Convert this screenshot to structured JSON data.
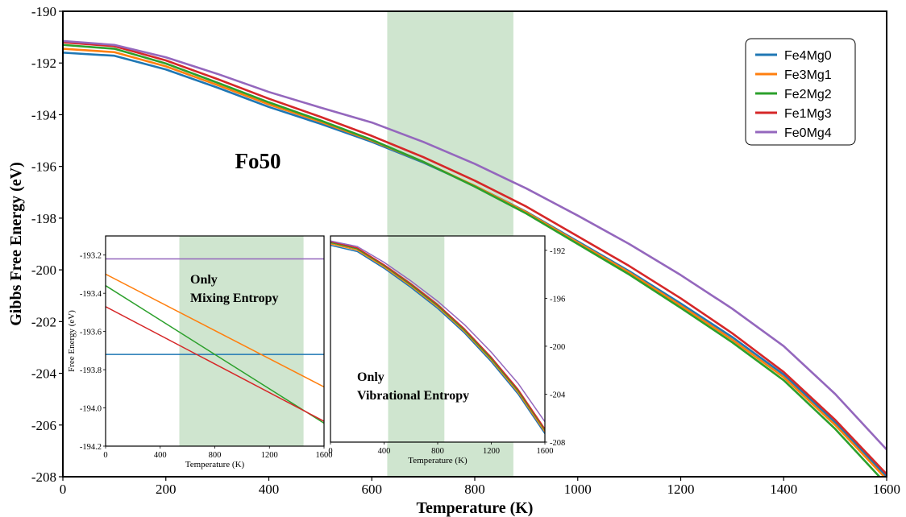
{
  "chart_data": {
    "type": "line",
    "main": {
      "xlabel": "Temperature (K)",
      "ylabel": "Gibbs Free Energy (eV)",
      "xlim": [
        0,
        1600
      ],
      "ylim": [
        -208,
        -190
      ],
      "xticks": [
        "0",
        "200",
        "400",
        "600",
        "800",
        "1000",
        "1200",
        "1400",
        "1600"
      ],
      "yticks": [
        "-190",
        "-192",
        "-194",
        "-196",
        "-198",
        "-200",
        "-202",
        "-204",
        "-206",
        "-208"
      ],
      "shaded_region": {
        "x_start": 630,
        "x_end": 875,
        "color": "#cfe5cf"
      },
      "annotation": "Fo50",
      "legend_position": "top-right",
      "grid": false,
      "series": [
        {
          "name": "Fe4Mg0",
          "color": "#1f77b4",
          "x": [
            0,
            100,
            200,
            300,
            400,
            500,
            600,
            700,
            800,
            900,
            1000,
            1100,
            1200,
            1300,
            1400,
            1500,
            1600
          ],
          "y": [
            -191.6,
            -191.72,
            -192.25,
            -192.95,
            -193.7,
            -194.35,
            -195.05,
            -195.85,
            -196.75,
            -197.75,
            -198.9,
            -200.05,
            -201.3,
            -202.6,
            -204.05,
            -205.9,
            -208.0
          ]
        },
        {
          "name": "Fe3Mg1",
          "color": "#ff7f0e",
          "x": [
            0,
            100,
            200,
            300,
            400,
            500,
            600,
            700,
            800,
            900,
            1000,
            1100,
            1200,
            1300,
            1400,
            1500,
            1600
          ],
          "y": [
            -191.45,
            -191.58,
            -192.13,
            -192.85,
            -193.6,
            -194.27,
            -195.0,
            -195.82,
            -196.75,
            -197.77,
            -198.94,
            -200.1,
            -201.38,
            -202.7,
            -204.15,
            -206.0,
            -208.1
          ]
        },
        {
          "name": "Fe2Mg2",
          "color": "#2ca02c",
          "x": [
            0,
            100,
            200,
            300,
            400,
            500,
            600,
            700,
            800,
            900,
            1000,
            1100,
            1200,
            1300,
            1400,
            1500,
            1600
          ],
          "y": [
            -191.3,
            -191.45,
            -192.02,
            -192.76,
            -193.52,
            -194.22,
            -194.97,
            -195.82,
            -196.78,
            -197.82,
            -199.0,
            -200.18,
            -201.47,
            -202.8,
            -204.27,
            -206.15,
            -208.3
          ]
        },
        {
          "name": "Fe1Mg3",
          "color": "#d62728",
          "x": [
            0,
            100,
            200,
            300,
            400,
            500,
            600,
            700,
            800,
            900,
            1000,
            1100,
            1200,
            1300,
            1400,
            1500,
            1600
          ],
          "y": [
            -191.2,
            -191.35,
            -191.9,
            -192.62,
            -193.38,
            -194.08,
            -194.82,
            -195.64,
            -196.55,
            -197.55,
            -198.7,
            -199.85,
            -201.1,
            -202.45,
            -203.95,
            -205.8,
            -207.9
          ]
        },
        {
          "name": "Fe0Mg4",
          "color": "#9467bd",
          "x": [
            0,
            100,
            200,
            300,
            400,
            500,
            600,
            700,
            800,
            900,
            1000,
            1100,
            1200,
            1300,
            1400,
            1500,
            1600
          ],
          "y": [
            -191.15,
            -191.3,
            -191.78,
            -192.42,
            -193.12,
            -193.72,
            -194.3,
            -195.05,
            -195.9,
            -196.85,
            -197.9,
            -199.0,
            -200.2,
            -201.5,
            -202.95,
            -204.8,
            -206.95
          ]
        }
      ]
    },
    "inset_mixing": {
      "annotation_lines": [
        "Only",
        "Mixing Entropy"
      ],
      "xlabel": "Temperature (K)",
      "ylabel": "Free Energy (eV)",
      "xlim": [
        0,
        1600
      ],
      "ylim": [
        -194.2,
        -193.1
      ],
      "xticks": [
        "0",
        "400",
        "800",
        "1200",
        "1600"
      ],
      "yticks": [
        "-193.2",
        "-193.4",
        "-193.6",
        "-193.8",
        "-194.0",
        "-194.2"
      ],
      "shaded_region": {
        "x_start": 540,
        "x_end": 1450
      },
      "series": [
        {
          "name": "Fe4Mg0",
          "color": "#1f77b4",
          "x": [
            0,
            1600
          ],
          "y": [
            -193.72,
            -193.72
          ]
        },
        {
          "name": "Fe3Mg1",
          "color": "#ff7f0e",
          "x": [
            0,
            1600
          ],
          "y": [
            -193.3,
            -193.89
          ]
        },
        {
          "name": "Fe2Mg2",
          "color": "#2ca02c",
          "x": [
            0,
            1600
          ],
          "y": [
            -193.36,
            -194.08
          ]
        },
        {
          "name": "Fe1Mg3",
          "color": "#d62728",
          "x": [
            0,
            1600
          ],
          "y": [
            -193.47,
            -194.07
          ]
        },
        {
          "name": "Fe0Mg4",
          "color": "#9467bd",
          "x": [
            0,
            1600
          ],
          "y": [
            -193.22,
            -193.22
          ]
        }
      ]
    },
    "inset_vibrational": {
      "annotation_lines": [
        "Only",
        "Vibrational Entropy"
      ],
      "xlabel": "Temperature (K)",
      "xlim": [
        0,
        1600
      ],
      "ylim": [
        -208,
        -190.8
      ],
      "xticks": [
        "0",
        "400",
        "800",
        "1200",
        "1600"
      ],
      "yticks": [
        "-192",
        "-196",
        "-200",
        "-204",
        "-208"
      ],
      "shaded_region": {
        "x_start": 430,
        "x_end": 850
      },
      "series": [
        {
          "name": "Fe4Mg0",
          "color": "#1f77b4",
          "x": [
            0,
            200,
            400,
            600,
            800,
            1000,
            1200,
            1400,
            1600
          ],
          "y": [
            -191.58,
            -192.1,
            -193.5,
            -195.1,
            -196.85,
            -198.9,
            -201.3,
            -204.0,
            -207.3
          ]
        },
        {
          "name": "Fe3Mg1",
          "color": "#ff7f0e",
          "x": [
            0,
            200,
            400,
            600,
            800,
            1000,
            1200,
            1400,
            1600
          ],
          "y": [
            -191.45,
            -191.98,
            -193.38,
            -194.98,
            -196.72,
            -198.77,
            -201.15,
            -203.85,
            -207.15
          ]
        },
        {
          "name": "Fe2Mg2",
          "color": "#2ca02c",
          "x": [
            0,
            200,
            400,
            600,
            800,
            1000,
            1200,
            1400,
            1600
          ],
          "y": [
            -191.35,
            -191.88,
            -193.28,
            -194.88,
            -196.62,
            -198.67,
            -201.05,
            -203.72,
            -207.0
          ]
        },
        {
          "name": "Fe1Mg3",
          "color": "#d62728",
          "x": [
            0,
            200,
            400,
            600,
            800,
            1000,
            1200,
            1400,
            1600
          ],
          "y": [
            -191.28,
            -191.8,
            -193.2,
            -194.78,
            -196.52,
            -198.55,
            -200.92,
            -203.6,
            -206.9
          ]
        },
        {
          "name": "Fe0Mg4",
          "color": "#9467bd",
          "x": [
            0,
            200,
            400,
            600,
            800,
            1000,
            1200,
            1400,
            1600
          ],
          "y": [
            -191.22,
            -191.68,
            -193.0,
            -194.55,
            -196.25,
            -198.2,
            -200.5,
            -203.1,
            -206.3
          ]
        }
      ]
    }
  }
}
